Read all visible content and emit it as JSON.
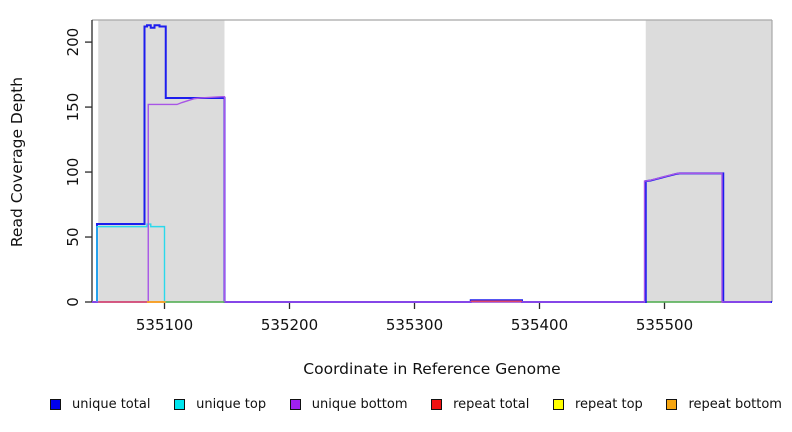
{
  "chart_data": {
    "type": "line",
    "title": "",
    "xlabel": "Coordinate in Reference Genome",
    "ylabel": "Read Coverage Depth",
    "xlim": [
      535042,
      535586
    ],
    "ylim": [
      0,
      217
    ],
    "x_ticks": [
      535100,
      535200,
      535300,
      535400,
      535500
    ],
    "y_ticks": [
      0,
      50,
      100,
      150,
      200
    ],
    "grid": false,
    "axis_color": "#2a2a2a",
    "box_color": "#a8a8a8",
    "shaded_regions": [
      {
        "x0": 535047,
        "x1": 535148,
        "color": "#dcdcdc"
      },
      {
        "x0": 535485,
        "x1": 535586,
        "color": "#dcdcdc"
      }
    ],
    "series": [
      {
        "name": "unique total",
        "color": "#1d1dee",
        "width": 2,
        "segments": [
          [
            [
              535042,
              0
            ],
            [
              535046,
              0
            ],
            [
              535046,
              60
            ],
            [
              535084,
              60
            ],
            [
              535084,
              212
            ],
            [
              535086,
              212
            ],
            [
              535086,
              213
            ],
            [
              535089,
              213
            ],
            [
              535089,
              211
            ],
            [
              535092,
              211
            ],
            [
              535092,
              213
            ],
            [
              535096,
              213
            ],
            [
              535096,
              212
            ],
            [
              535101,
              212
            ],
            [
              535101,
              157
            ],
            [
              535148,
              157
            ],
            [
              535148,
              0
            ],
            [
              535345,
              0
            ],
            [
              535345,
              1.3
            ],
            [
              535386,
              1.3
            ],
            [
              535386,
              0
            ],
            [
              535485,
              0
            ],
            [
              535485,
              93
            ],
            [
              535489,
              93.5
            ],
            [
              535493,
              94.5
            ],
            [
              535497,
              95.5
            ],
            [
              535501,
              96.5
            ],
            [
              535505,
              97.5
            ],
            [
              535509,
              98.5
            ],
            [
              535512,
              99
            ],
            [
              535547,
              99
            ],
            [
              535547,
              0
            ],
            [
              535586,
              0
            ]
          ]
        ]
      },
      {
        "name": "unique top",
        "color": "#2bd9ec",
        "width": 1.4,
        "segments": [
          [
            [
              535046,
              0
            ],
            [
              535046,
              58
            ],
            [
              535086,
              58
            ],
            [
              535086,
              60
            ],
            [
              535089,
              60
            ],
            [
              535089,
              58
            ],
            [
              535100,
              58
            ],
            [
              535100,
              0
            ],
            [
              535104,
              0
            ]
          ]
        ]
      },
      {
        "name": "unique bottom",
        "color": "#a855e6",
        "width": 1.4,
        "segments": [
          [
            [
              535042,
              0
            ],
            [
              535087,
              0
            ],
            [
              535087,
              152
            ],
            [
              535110,
              152
            ],
            [
              535114,
              153.5
            ],
            [
              535119,
              155
            ],
            [
              535124,
              156.5
            ],
            [
              535129,
              157
            ],
            [
              535146,
              158
            ],
            [
              535148,
              158
            ],
            [
              535148,
              0
            ],
            [
              535484,
              0
            ],
            [
              535484,
              93
            ],
            [
              535488,
              93.5
            ],
            [
              535492,
              94.5
            ],
            [
              535496,
              95.5
            ],
            [
              535500,
              96.5
            ],
            [
              535504,
              97.5
            ],
            [
              535508,
              98.5
            ],
            [
              535511,
              99
            ],
            [
              535546,
              99
            ],
            [
              535546,
              0
            ],
            [
              535585,
              0
            ]
          ]
        ]
      },
      {
        "name": "repeat total",
        "color": "#e04868",
        "width": 1.5,
        "segments": [
          [
            [
              535047,
              0
            ],
            [
              535086,
              0
            ]
          ],
          [
            [
              535345,
              0.6
            ],
            [
              535386,
              0.6
            ]
          ]
        ]
      },
      {
        "name": "repeat bottom",
        "color": "#ff9f1a",
        "width": 1.8,
        "segments": [
          [
            [
              535086,
              0
            ],
            [
              535101,
              0
            ]
          ]
        ]
      },
      {
        "name": "repeat top",
        "color": "#5abb5a",
        "width": 1.5,
        "segments": [
          [
            [
              535101,
              0
            ],
            [
              535148,
              0
            ]
          ],
          [
            [
              535486,
              0
            ],
            [
              535545,
              0
            ]
          ]
        ]
      }
    ],
    "legend": {
      "position": "bottom",
      "items": [
        {
          "label": "unique total",
          "color": "#0000ee"
        },
        {
          "label": "unique top",
          "color": "#00e5ee"
        },
        {
          "label": "unique bottom",
          "color": "#a020f0"
        },
        {
          "label": "repeat total",
          "color": "#ee1111"
        },
        {
          "label": "repeat top",
          "color": "#ffff00"
        },
        {
          "label": "repeat bottom",
          "color": "#f5a511"
        }
      ]
    }
  }
}
